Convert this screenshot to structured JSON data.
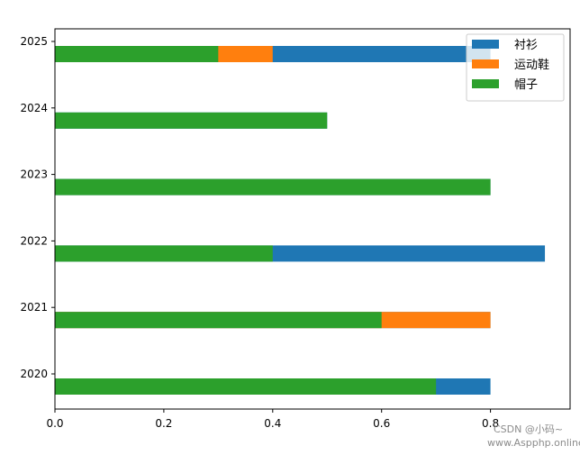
{
  "chart_data": {
    "type": "bar",
    "orientation": "horizontal",
    "stacked": true,
    "categories": [
      "2020",
      "2021",
      "2022",
      "2023",
      "2024",
      "2025"
    ],
    "series": [
      {
        "name": "衬衫",
        "color": "#1f77b4",
        "values": [
          0.1,
          0.0,
          0.5,
          0.0,
          0.0,
          0.4
        ]
      },
      {
        "name": "运动鞋",
        "color": "#ff7f0e",
        "values": [
          0.0,
          0.2,
          0.0,
          0.0,
          0.0,
          0.1
        ]
      },
      {
        "name": "帽子",
        "color": "#2ca02c",
        "values": [
          0.7,
          0.6,
          0.4,
          0.8,
          0.5,
          0.3
        ]
      }
    ],
    "stack_note": "Bars drawn overlapping from 0: 衬衫 spans 0 to total, 运动鞋 and 帽子 drawn on top",
    "x_ticks": [
      "0.0",
      "0.2",
      "0.4",
      "0.6",
      "0.8"
    ],
    "x_tick_values": [
      0.0,
      0.2,
      0.4,
      0.6,
      0.8
    ],
    "xlim": [
      0.0,
      0.95
    ],
    "legend_position": "top-right",
    "grid": false
  },
  "watermark": {
    "line1": "CSDN @小码~",
    "line2": "www.Aspphp.online"
  }
}
